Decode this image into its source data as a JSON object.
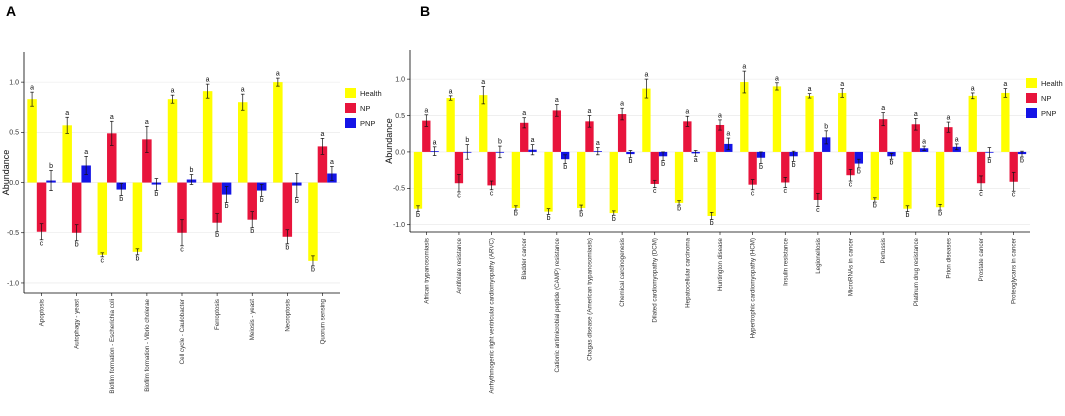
{
  "colors": {
    "Health": "#FFFF00",
    "NP": "#E8143C",
    "PNP": "#1414E6"
  },
  "chart_data": [
    {
      "panel": "A",
      "type": "bar",
      "ylabel": "Abundance",
      "ylim": [
        -1.1,
        1.3
      ],
      "yticks": [
        -1.0,
        -0.5,
        0.0,
        0.5,
        1.0
      ],
      "ytick_labels": [
        "-1.0",
        "-0.5",
        "0.0",
        "0.5",
        "1.0"
      ],
      "legend": [
        "Health",
        "NP",
        "PNP"
      ],
      "categories": [
        "Apoptosis",
        "Autophagy - yeast",
        "Biofilm formation - Escherichia coli",
        "Biofilm formation - Vibrio cholerae",
        "Cell cycle - Caulobacter",
        "Ferroptosis",
        "Meiosis - yeast",
        "Necroptosis",
        "Quorum sensing"
      ],
      "series": [
        {
          "name": "Health",
          "values": [
            0.83,
            0.57,
            -0.72,
            -0.69,
            0.83,
            0.91,
            0.8,
            1.0,
            -0.78
          ],
          "errors": [
            0.07,
            0.08,
            0.02,
            0.03,
            0.04,
            0.07,
            0.08,
            0.04,
            0.05
          ],
          "letters": [
            "a",
            "a",
            "c",
            "b",
            "a",
            "a",
            "a",
            "a",
            "b"
          ]
        },
        {
          "name": "NP",
          "values": [
            -0.49,
            -0.5,
            0.49,
            0.43,
            -0.5,
            -0.4,
            -0.37,
            -0.54,
            0.36
          ],
          "errors": [
            0.08,
            0.08,
            0.12,
            0.13,
            0.13,
            0.09,
            0.08,
            0.07,
            0.08
          ],
          "letters": [
            "c",
            "b",
            "a",
            "a",
            "c",
            "b",
            "b",
            "b",
            "a"
          ]
        },
        {
          "name": "PNP",
          "values": [
            0.02,
            0.17,
            -0.07,
            -0.02,
            0.03,
            -0.12,
            -0.08,
            -0.03,
            0.09
          ],
          "errors": [
            0.1,
            0.09,
            0.06,
            0.06,
            0.05,
            0.08,
            0.06,
            0.12,
            0.07
          ],
          "letters": [
            "b",
            "a",
            "b",
            "b",
            "b",
            "b",
            "b",
            "b",
            "a"
          ]
        }
      ]
    },
    {
      "panel": "B",
      "type": "bar",
      "ylabel": "Abundance",
      "ylim": [
        -1.1,
        1.4
      ],
      "yticks": [
        -1.0,
        -0.5,
        0.0,
        0.5,
        1.0
      ],
      "ytick_labels": [
        "-1.0",
        "-0.5",
        "0.0",
        "0.5",
        "1.0"
      ],
      "legend": [
        "Health",
        "NP",
        "PNP"
      ],
      "categories": [
        "African trypanosomiasis",
        "Antifolate resistance",
        "Arrhythmogenic right ventricular cardiomyopathy (ARVC)",
        "Bladder cancer",
        "Cationic antimicrobial peptide (CAMP) resistance",
        "Chagas disease (American trypanosomiasis)",
        "Chemical carcinogenesis",
        "Dilated cardiomyopathy (DCM)",
        "Hepatocellular carcinoma",
        "Huntington disease",
        "Hypertrophic cardiomyopathy (HCM)",
        "Insulin resistance",
        "Legionellosis",
        "MicroRNAs in cancer",
        "Pertussis",
        "Platinum drug resistance",
        "Prion diseases",
        "Prostate cancer",
        "Proteoglycans in cancer"
      ],
      "series": [
        {
          "name": "Health",
          "values": [
            -0.78,
            0.74,
            0.78,
            -0.77,
            -0.82,
            -0.77,
            -0.84,
            0.87,
            -0.7,
            -0.88,
            0.96,
            0.9,
            0.77,
            0.81,
            -0.66,
            -0.78,
            -0.76,
            0.77,
            0.81
          ],
          "errors": [
            0.04,
            0.03,
            0.12,
            0.03,
            0.04,
            0.04,
            0.03,
            0.13,
            0.03,
            0.05,
            0.15,
            0.05,
            0.03,
            0.06,
            0.03,
            0.04,
            0.04,
            0.04,
            0.06
          ],
          "letters": [
            "b",
            "a",
            "a",
            "b",
            "b",
            "b",
            "b",
            "a",
            "b",
            "b",
            "a",
            "a",
            "a",
            "a",
            "b",
            "b",
            "b",
            "a",
            "a"
          ]
        },
        {
          "name": "NP",
          "values": [
            0.43,
            -0.43,
            -0.46,
            0.4,
            0.57,
            0.42,
            0.52,
            -0.44,
            0.42,
            0.37,
            -0.45,
            -0.42,
            -0.66,
            -0.32,
            0.45,
            0.38,
            0.34,
            -0.43,
            -0.41
          ],
          "errors": [
            0.08,
            0.12,
            0.06,
            0.07,
            0.08,
            0.08,
            0.08,
            0.05,
            0.07,
            0.07,
            0.07,
            0.07,
            0.09,
            0.08,
            0.09,
            0.08,
            0.07,
            0.1,
            0.13
          ],
          "letters": [
            "a",
            "c",
            "c",
            "a",
            "a",
            "a",
            "a",
            "c",
            "a",
            "a",
            "c",
            "c",
            "c",
            "c",
            "a",
            "a",
            "a",
            "c",
            "c"
          ]
        },
        {
          "name": "PNP",
          "values": [
            0.01,
            0.0,
            0.0,
            0.03,
            -0.1,
            0.01,
            -0.03,
            -0.06,
            -0.02,
            0.11,
            -0.08,
            -0.06,
            0.2,
            -0.16,
            -0.06,
            0.05,
            0.07,
            -0.01,
            -0.03
          ],
          "errors": [
            0.06,
            0.1,
            0.08,
            0.07,
            0.06,
            0.05,
            0.05,
            0.06,
            0.04,
            0.08,
            0.08,
            0.07,
            0.09,
            0.06,
            0.04,
            0.03,
            0.04,
            0.07,
            0.04
          ],
          "letters": [
            "a",
            "b",
            "b",
            "a",
            "b",
            "a",
            "b",
            "b",
            "a",
            "a",
            "b",
            "b",
            "b",
            "b",
            "b",
            "a",
            "a",
            "b",
            "b"
          ]
        }
      ]
    }
  ]
}
